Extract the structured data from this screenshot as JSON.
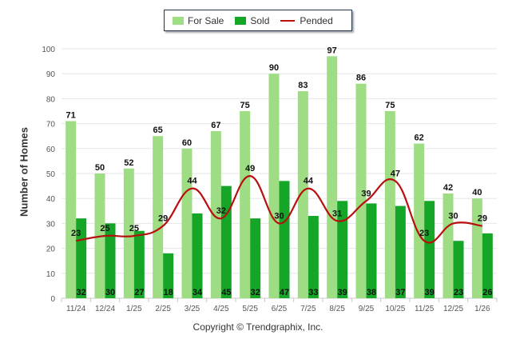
{
  "chart_data": {
    "type": "bar",
    "title": "",
    "xlabel": "",
    "ylabel": "Number of Homes",
    "ylim": [
      0,
      100
    ],
    "yticks": [
      0,
      10,
      20,
      30,
      40,
      50,
      60,
      70,
      80,
      90,
      100
    ],
    "grid": true,
    "legend_position": "top-center",
    "categories": [
      "11/24",
      "12/24",
      "1/25",
      "2/25",
      "3/25",
      "4/25",
      "5/25",
      "6/25",
      "7/25",
      "8/25",
      "9/25",
      "10/25",
      "11/25",
      "12/25",
      "1/26"
    ],
    "series": [
      {
        "name": "For Sale",
        "type": "bar",
        "color": "#9edd84",
        "values": [
          71,
          50,
          52,
          65,
          60,
          67,
          75,
          90,
          83,
          97,
          86,
          75,
          62,
          42,
          40
        ]
      },
      {
        "name": "Sold",
        "type": "bar",
        "color": "#15a527",
        "values": [
          32,
          30,
          27,
          18,
          34,
          45,
          32,
          47,
          33,
          39,
          38,
          37,
          39,
          23,
          26
        ]
      },
      {
        "name": "Pended",
        "type": "line",
        "color": "#b80f0f",
        "values": [
          23,
          25,
          25,
          29,
          44,
          32,
          49,
          30,
          44,
          31,
          39,
          47,
          23,
          30,
          29
        ]
      }
    ]
  },
  "copyright": "Copyright © Trendgraphix, Inc."
}
